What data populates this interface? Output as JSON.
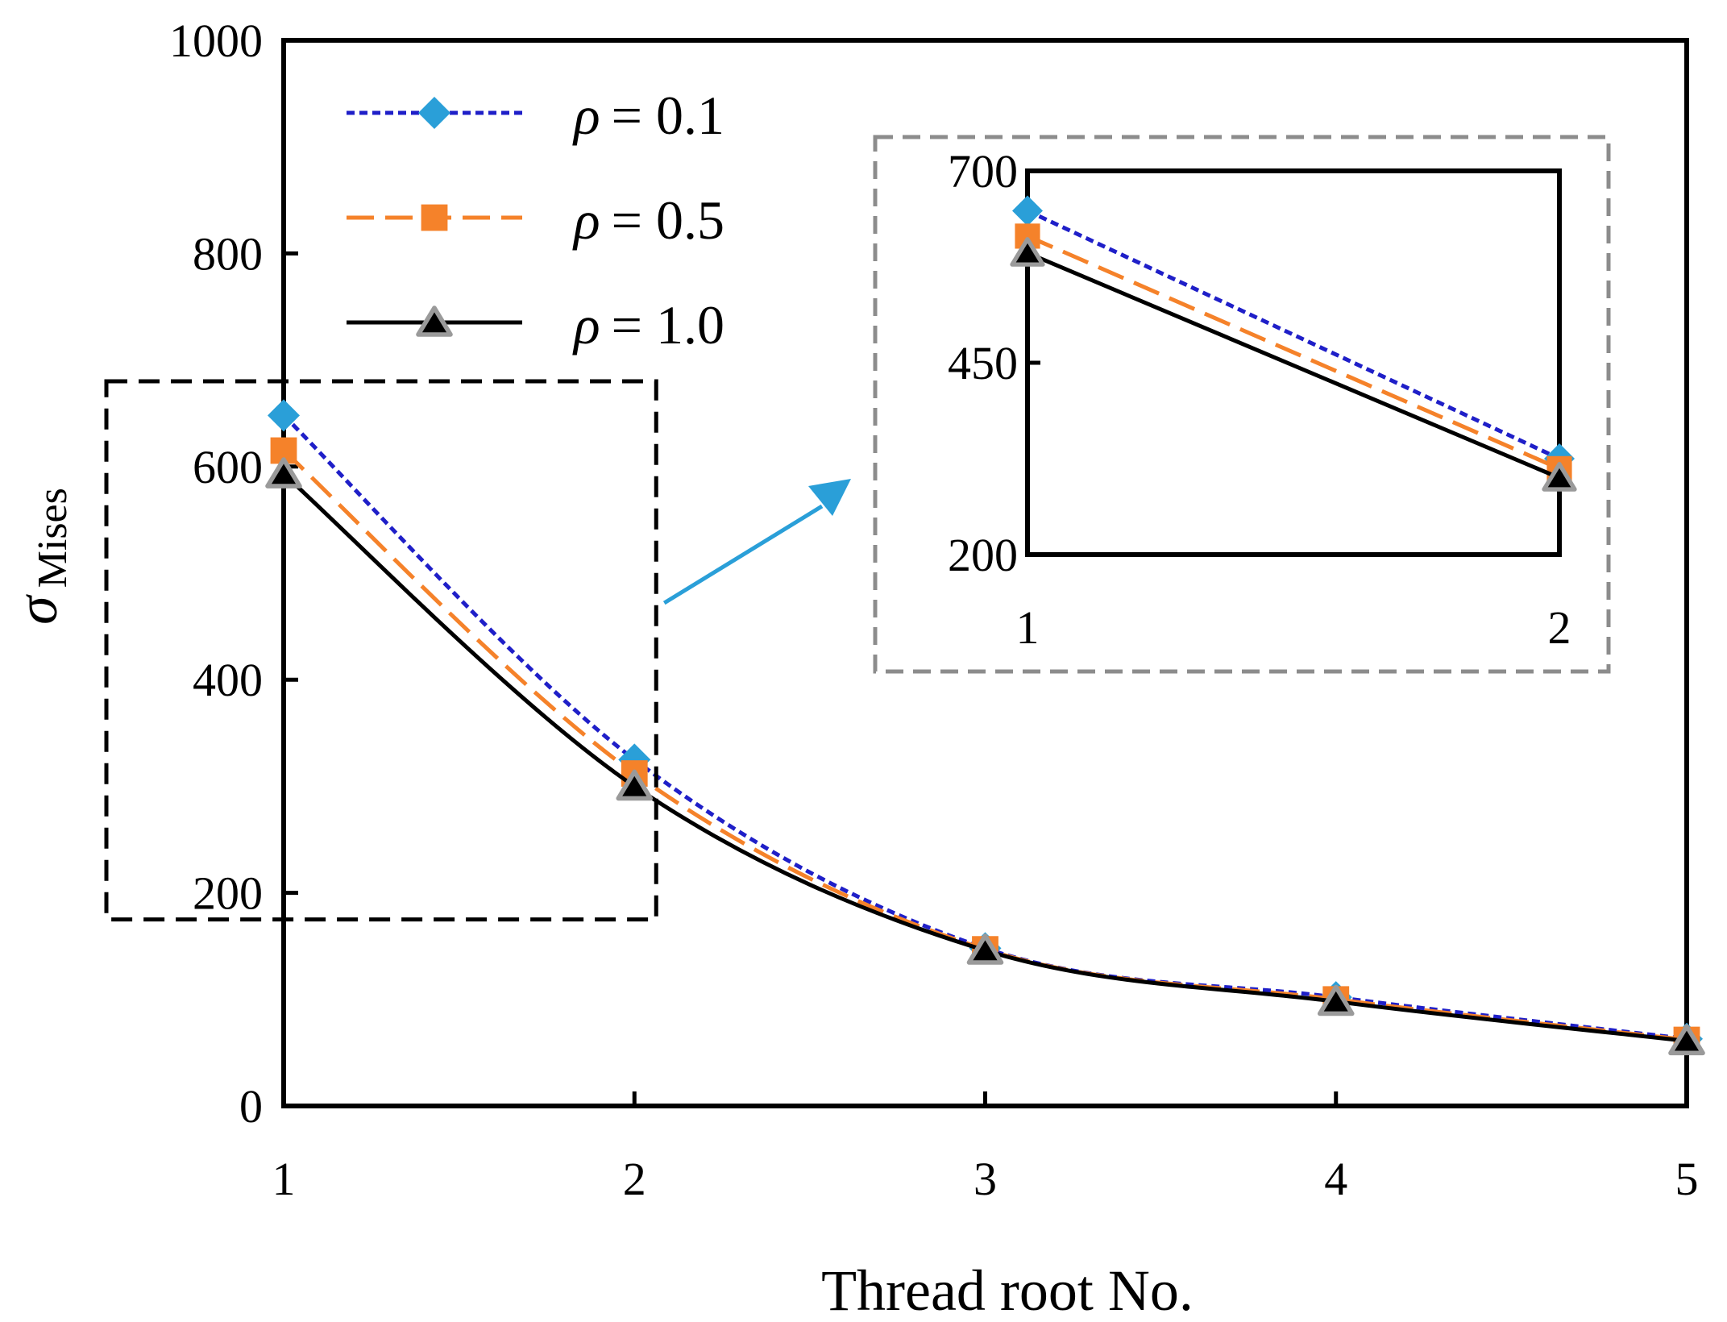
{
  "chart_data": {
    "type": "line",
    "title": "",
    "xlabel": "Thread root No.",
    "ylabel_symbol": "σ",
    "ylabel_subscript": "Mises",
    "x": [
      1,
      2,
      3,
      4,
      5
    ],
    "xlim": [
      1,
      5
    ],
    "ylim": [
      0,
      1000
    ],
    "yticks": [
      0,
      200,
      400,
      600,
      800,
      1000
    ],
    "xticks": [
      1,
      2,
      3,
      4,
      5
    ],
    "legend_position": "top-left",
    "series": [
      {
        "name": "ρ = 0.1",
        "label_symbol": "ρ",
        "label_value": "= 0.1",
        "color": "#1f1fc8",
        "marker": "diamond",
        "marker_color": "#2a9fd8",
        "line_style": "dotted",
        "values": [
          648,
          325,
          148,
          102,
          63
        ]
      },
      {
        "name": "ρ = 0.5",
        "label_symbol": "ρ",
        "label_value": "= 0.5",
        "color": "#f5822a",
        "marker": "square",
        "marker_color": "#f5822a",
        "line_style": "dashed",
        "values": [
          615,
          312,
          147,
          100,
          62
        ]
      },
      {
        "name": "ρ = 1.0",
        "label_symbol": "ρ",
        "label_value": "= 1.0",
        "color": "#000000",
        "marker": "triangle",
        "marker_color": "#000000",
        "line_style": "solid",
        "values": [
          593,
          300,
          146,
          98,
          61
        ]
      }
    ],
    "zoom_region": {
      "x_range": [
        1,
        2
      ],
      "y_range": [
        175,
        680
      ]
    },
    "inset": {
      "x_range": [
        1,
        2
      ],
      "ylim": [
        200,
        700
      ],
      "yticks": [
        200,
        450,
        700
      ],
      "xticks": [
        1,
        2
      ]
    },
    "arrow_color": "#2a9fd8"
  }
}
